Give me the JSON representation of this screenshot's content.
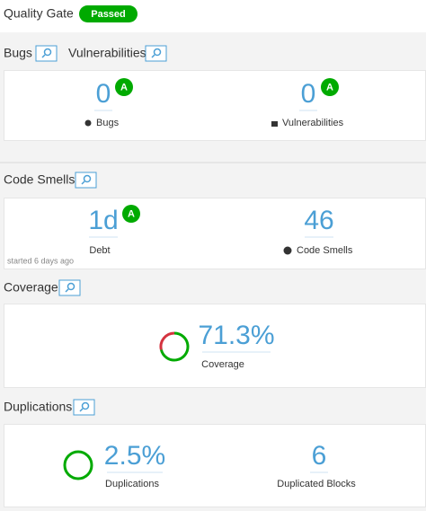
{
  "quality_gate": {
    "label": "Quality Gate",
    "status": "Passed"
  },
  "reliability_security": {
    "headers": [
      "Bugs",
      "Vulnerabilities"
    ],
    "metrics": [
      {
        "value": "0",
        "rating": "A",
        "label": "Bugs"
      },
      {
        "value": "0",
        "rating": "A",
        "label": "Vulnerabilities"
      }
    ]
  },
  "maintainability": {
    "header": "Code Smells",
    "metrics": [
      {
        "value": "1d",
        "rating": "A",
        "label": "Debt",
        "note": "started 6 days ago"
      },
      {
        "value": "46",
        "label": "Code Smells"
      }
    ]
  },
  "coverage": {
    "header": "Coverage",
    "metrics": [
      {
        "value": {
          "value": 71.3,
          "label": "71.3%"
        },
        "label": "Coverage"
      }
    ]
  },
  "duplications": {
    "header": "Duplications",
    "metrics": [
      {
        "value": "2.5%",
        "label": "Duplications"
      },
      {
        "value": "6",
        "label": "Duplicated Blocks"
      }
    ]
  }
}
